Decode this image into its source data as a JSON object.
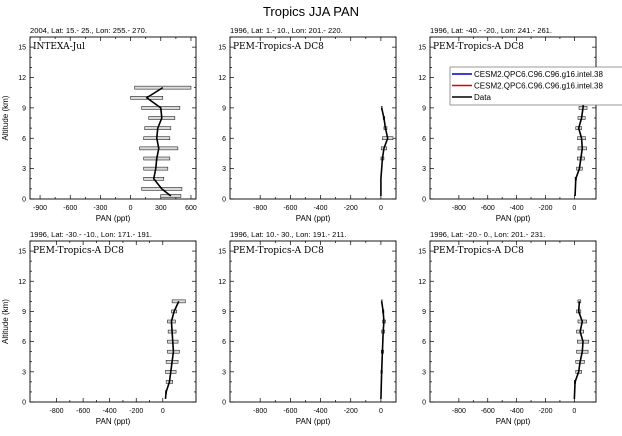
{
  "figure_title": "Tropics JJA PAN",
  "legend": {
    "entries": [
      {
        "label": "CESM2.QPC6.C96.C96.g16.intel.38",
        "color": "#0000c0"
      },
      {
        "label": "CESM2.QPC6.C96.C96.g16.intel.38",
        "color": "#e00000"
      },
      {
        "label": "Data",
        "color": "#000000"
      }
    ]
  },
  "chart_data": [
    {
      "type": "line",
      "title": "2004, Lat: 15.- 25., Lon: 255.- 270.",
      "annotation": "INTEXA-Jul",
      "xlabel": "PAN (ppt)",
      "ylabel": "Altitude (km)",
      "xlim": [
        -1000,
        650
      ],
      "ylim": [
        0,
        16
      ],
      "xticks": [
        -900,
        -600,
        -300,
        0,
        300,
        600
      ],
      "yticks": [
        0,
        3,
        6,
        9,
        12,
        15
      ],
      "series": [
        {
          "points": [
            {
              "alt": 0.3,
              "mean": 400,
              "err": 100
            },
            {
              "alt": 1.0,
              "mean": 310,
              "err": 200
            },
            {
              "alt": 2.0,
              "mean": 230,
              "err": 100
            },
            {
              "alt": 3.0,
              "mean": 250,
              "err": 120
            },
            {
              "alt": 4.0,
              "mean": 260,
              "err": 130
            },
            {
              "alt": 5.0,
              "mean": 280,
              "err": 190
            },
            {
              "alt": 6.0,
              "mean": 260,
              "err": 130
            },
            {
              "alt": 7.0,
              "mean": 270,
              "err": 130
            },
            {
              "alt": 8.0,
              "mean": 310,
              "err": 130
            },
            {
              "alt": 9.0,
              "mean": 300,
              "err": 190
            },
            {
              "alt": 10.0,
              "mean": 160,
              "err": 160
            },
            {
              "alt": 11.0,
              "mean": 320,
              "err": 280
            }
          ]
        }
      ]
    },
    {
      "type": "line",
      "title": "1996, Lat: 1.- 10., Lon: 201.- 220.",
      "annotation": "PEM-Tropics-A DC8",
      "xlabel": "PAN (ppt)",
      "ylabel": "",
      "xlim": [
        -1000,
        100
      ],
      "ylim": [
        0,
        16
      ],
      "xticks": [
        -800,
        -600,
        -400,
        -200,
        0
      ],
      "yticks": [
        0,
        3,
        6,
        9,
        12,
        15
      ],
      "series": [
        {
          "points": [
            {
              "alt": 0.3,
              "mean": 0,
              "err": 0
            },
            {
              "alt": 2.0,
              "mean": 0,
              "err": 0
            },
            {
              "alt": 4.0,
              "mean": 10,
              "err": 10
            },
            {
              "alt": 5.0,
              "mean": 20,
              "err": 18
            },
            {
              "alt": 6.0,
              "mean": 45,
              "err": 35
            },
            {
              "alt": 7.0,
              "mean": 30,
              "err": 10
            },
            {
              "alt": 8.0,
              "mean": 20,
              "err": 5
            },
            {
              "alt": 9.0,
              "mean": 5,
              "err": 3
            }
          ]
        }
      ]
    },
    {
      "type": "line",
      "title": "1996, Lat: -40.- -20., Lon: 241.- 261.",
      "annotation": "PEM-Tropics-A DC8",
      "xlabel": "PAN (ppt)",
      "ylabel": "",
      "xlim": [
        -1000,
        150
      ],
      "ylim": [
        0,
        16
      ],
      "xticks": [
        -800,
        -600,
        -400,
        -200,
        0
      ],
      "yticks": [
        0,
        3,
        6,
        9,
        12,
        15
      ],
      "series": [
        {
          "points": [
            {
              "alt": 0.3,
              "mean": 5,
              "err": 0
            },
            {
              "alt": 2.0,
              "mean": 10,
              "err": 5
            },
            {
              "alt": 3.0,
              "mean": 35,
              "err": 20
            },
            {
              "alt": 4.0,
              "mean": 45,
              "err": 25
            },
            {
              "alt": 5.0,
              "mean": 55,
              "err": 30
            },
            {
              "alt": 6.0,
              "mean": 50,
              "err": 28
            },
            {
              "alt": 7.0,
              "mean": 30,
              "err": 20
            },
            {
              "alt": 8.0,
              "mean": 50,
              "err": 25
            },
            {
              "alt": 9.0,
              "mean": 60,
              "err": 28
            },
            {
              "alt": 10.0,
              "mean": 65,
              "err": 5
            }
          ]
        }
      ]
    },
    {
      "type": "line",
      "title": "1996, Lat: -30.- -10., Lon: 171.- 191.",
      "annotation": "PEM-Tropics-A DC8",
      "xlabel": "PAN (ppt)",
      "ylabel": "Altitude (km)",
      "xlim": [
        -1000,
        250
      ],
      "ylim": [
        0,
        16
      ],
      "xticks": [
        -800,
        -600,
        -400,
        -200,
        0
      ],
      "yticks": [
        0,
        3,
        6,
        9,
        12,
        15
      ],
      "series": [
        {
          "points": [
            {
              "alt": 0.3,
              "mean": 20,
              "err": 0
            },
            {
              "alt": 1.0,
              "mean": 25,
              "err": 5
            },
            {
              "alt": 2.0,
              "mean": 50,
              "err": 25
            },
            {
              "alt": 3.0,
              "mean": 60,
              "err": 40
            },
            {
              "alt": 4.0,
              "mean": 70,
              "err": 45
            },
            {
              "alt": 5.0,
              "mean": 80,
              "err": 45
            },
            {
              "alt": 6.0,
              "mean": 75,
              "err": 40
            },
            {
              "alt": 7.0,
              "mean": 70,
              "err": 30
            },
            {
              "alt": 8.0,
              "mean": 65,
              "err": 30
            },
            {
              "alt": 9.0,
              "mean": 85,
              "err": 20
            },
            {
              "alt": 10.0,
              "mean": 120,
              "err": 50
            }
          ]
        }
      ]
    },
    {
      "type": "line",
      "title": "1996, Lat: 10.- 30., Lon: 191.- 211.",
      "annotation": "PEM-Tropics-A DC8",
      "xlabel": "PAN (ppt)",
      "ylabel": "",
      "xlim": [
        -1000,
        100
      ],
      "ylim": [
        0,
        16
      ],
      "xticks": [
        -800,
        -600,
        -400,
        -200,
        0
      ],
      "yticks": [
        0,
        3,
        6,
        9,
        12,
        15
      ],
      "series": [
        {
          "points": [
            {
              "alt": 0.3,
              "mean": 0,
              "err": 0
            },
            {
              "alt": 3.0,
              "mean": 5,
              "err": 5
            },
            {
              "alt": 5.0,
              "mean": 10,
              "err": 8
            },
            {
              "alt": 7.0,
              "mean": 15,
              "err": 10
            },
            {
              "alt": 8.0,
              "mean": 20,
              "err": 10
            },
            {
              "alt": 9.0,
              "mean": 15,
              "err": 5
            },
            {
              "alt": 10.0,
              "mean": 5,
              "err": 3
            }
          ]
        }
      ]
    },
    {
      "type": "line",
      "title": "1996, Lat: -20.- 0., Lon: 201.- 231.",
      "annotation": "PEM-Tropics-A DC8",
      "xlabel": "PAN (ppt)",
      "ylabel": "",
      "xlim": [
        -1000,
        150
      ],
      "ylim": [
        0,
        16
      ],
      "xticks": [
        -800,
        -600,
        -400,
        -200,
        0
      ],
      "yticks": [
        0,
        3,
        6,
        9,
        12,
        15
      ],
      "series": [
        {
          "points": [
            {
              "alt": 0.3,
              "mean": 0,
              "err": 0
            },
            {
              "alt": 2.0,
              "mean": 5,
              "err": 5
            },
            {
              "alt": 3.0,
              "mean": 30,
              "err": 20
            },
            {
              "alt": 4.0,
              "mean": 40,
              "err": 30
            },
            {
              "alt": 5.0,
              "mean": 55,
              "err": 40
            },
            {
              "alt": 6.0,
              "mean": 60,
              "err": 40
            },
            {
              "alt": 7.0,
              "mean": 40,
              "err": 25
            },
            {
              "alt": 8.0,
              "mean": 55,
              "err": 30
            },
            {
              "alt": 9.0,
              "mean": 30,
              "err": 15
            },
            {
              "alt": 10.0,
              "mean": 35,
              "err": 10
            }
          ]
        }
      ]
    }
  ]
}
